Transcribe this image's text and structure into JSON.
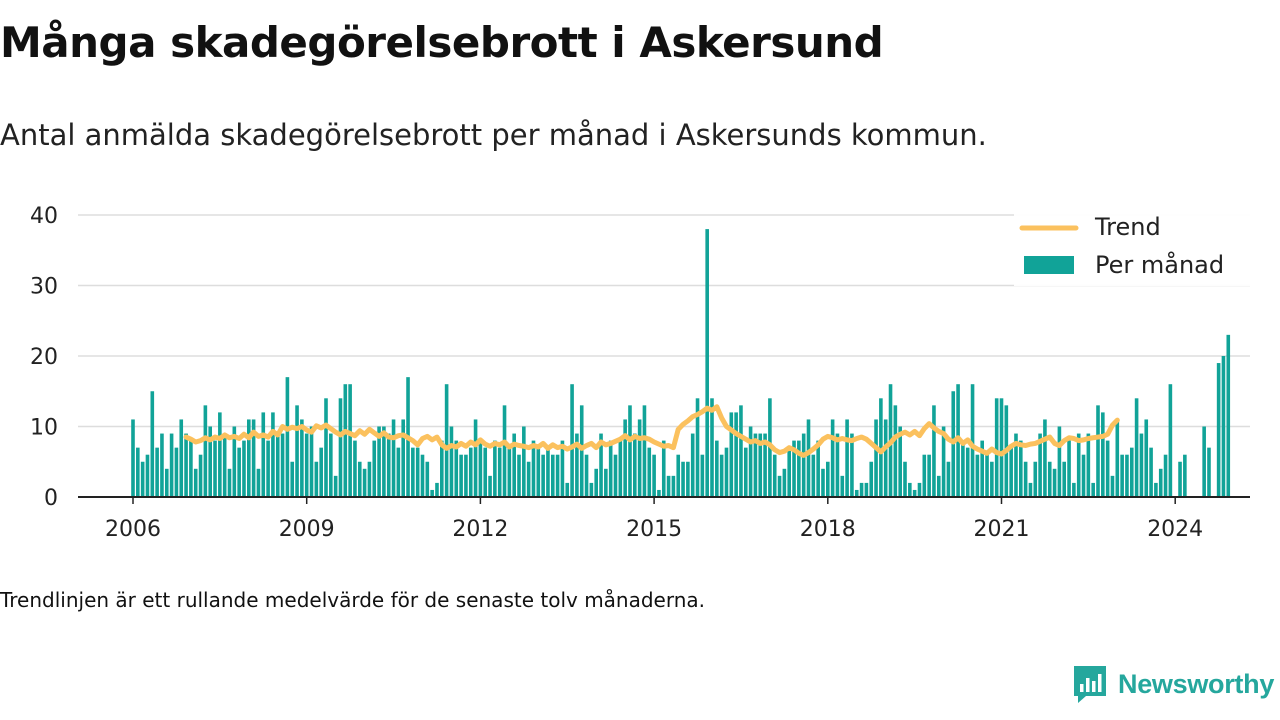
{
  "title": "Många skadegörelsebrott i Askersund",
  "subtitle": "Antal anmälda skadegörelsebrott per månad i Askersunds kommun.",
  "footnote": "Trendlinjen är ett rullande medelvärde för de senaste tolv månaderna.",
  "brand": {
    "name": "Newsworthy",
    "icon": "newsworthy-logo-icon"
  },
  "colors": {
    "bars": "#11a398",
    "trend": "#fbc15e",
    "grid": "#dddddd",
    "axis": "#222222"
  },
  "chart_data": {
    "type": "bar",
    "start": "2006-01",
    "ylim": [
      0,
      40
    ],
    "yticks": [
      0,
      10,
      20,
      30,
      40
    ],
    "xticks": [
      "2006",
      "2009",
      "2012",
      "2015",
      "2018",
      "2021",
      "2024"
    ],
    "grid": true,
    "legend_position": "top-right",
    "legend": {
      "trend": "Trend",
      "bars": "Per månad"
    },
    "series": [
      {
        "name": "Per månad",
        "type": "bar",
        "values": [
          11,
          7,
          5,
          6,
          15,
          7,
          9,
          4,
          9,
          7,
          11,
          9,
          8,
          4,
          6,
          13,
          10,
          8,
          12,
          9,
          4,
          10,
          7,
          8,
          11,
          11,
          4,
          12,
          8,
          12,
          9,
          9,
          17,
          5,
          13,
          11,
          9,
          10,
          5,
          7,
          14,
          9,
          3,
          14,
          16,
          16,
          8,
          5,
          4,
          5,
          8,
          10,
          10,
          9,
          11,
          7,
          11,
          17,
          7,
          7,
          6,
          5,
          1,
          2,
          8,
          16,
          10,
          8,
          6,
          6,
          7,
          11,
          8,
          7,
          3,
          8,
          7,
          13,
          7,
          9,
          6,
          10,
          5,
          8,
          7,
          6,
          7,
          6,
          6,
          8,
          2,
          16,
          9,
          13,
          6,
          2,
          4,
          9,
          4,
          8,
          6,
          8,
          11,
          13,
          9,
          11,
          13,
          7,
          6,
          1,
          8,
          3,
          3,
          6,
          5,
          5,
          9,
          14,
          6,
          38,
          14,
          8,
          6,
          7,
          12,
          12,
          13,
          7,
          10,
          9,
          9,
          9,
          14,
          6,
          3,
          4,
          7,
          8,
          8,
          9,
          11,
          6,
          8,
          4,
          5,
          11,
          9,
          3,
          11,
          9,
          1,
          2,
          2,
          5,
          11,
          14,
          11,
          16,
          13,
          10,
          5,
          2,
          1,
          2,
          6,
          6,
          13,
          3,
          10,
          5,
          15,
          16,
          8,
          7,
          16,
          6,
          8,
          6,
          5,
          14,
          14,
          13,
          7,
          9,
          8,
          5,
          2,
          5,
          9,
          11,
          5,
          4,
          10,
          5,
          8,
          2,
          9,
          6,
          9,
          2,
          13,
          12,
          8,
          3,
          11,
          6,
          6,
          7,
          14,
          9,
          11,
          7,
          2,
          4,
          6,
          16,
          0,
          5,
          6,
          0,
          0,
          0,
          10,
          7,
          0,
          19,
          20,
          23
        ]
      },
      {
        "name": "Trend",
        "type": "line",
        "start": "2006-12",
        "values": [
          8.5,
          8.2,
          7.8,
          8.0,
          8.4,
          8.1,
          8.5,
          8.3,
          8.8,
          8.4,
          8.6,
          8.3,
          8.9,
          8.4,
          9.2,
          8.6,
          8.8,
          8.5,
          9.3,
          8.8,
          10.0,
          9.6,
          9.9,
          9.7,
          10.0,
          9.5,
          9.2,
          10.1,
          9.8,
          10.2,
          9.7,
          9.2,
          8.8,
          9.3,
          9.0,
          8.7,
          9.4,
          8.9,
          9.6,
          9.1,
          8.6,
          9.1,
          8.5,
          8.4,
          8.7,
          8.8,
          8.4,
          8.0,
          7.4,
          8.3,
          8.6,
          8.1,
          8.5,
          7.4,
          6.9,
          7.3,
          7.1,
          7.6,
          7.2,
          7.8,
          7.4,
          8.1,
          7.5,
          7.2,
          7.6,
          7.4,
          7.8,
          7.1,
          7.5,
          7.3,
          7.2,
          7.0,
          7.3,
          7.1,
          7.6,
          6.9,
          7.4,
          7.0,
          7.2,
          6.8,
          7.1,
          7.5,
          6.9,
          7.3,
          7.6,
          7.0,
          7.8,
          7.4,
          7.6,
          7.9,
          8.2,
          8.7,
          8.1,
          8.6,
          8.3,
          8.4,
          8.2,
          7.8,
          7.5,
          7.2,
          7.3,
          7.0,
          9.6,
          10.3,
          10.8,
          11.4,
          11.7,
          12.1,
          12.6,
          12.3,
          12.8,
          11.2,
          10.0,
          9.5,
          9.0,
          8.6,
          8.2,
          7.8,
          8.0,
          7.6,
          7.8,
          7.4,
          6.7,
          6.3,
          6.5,
          7.0,
          6.7,
          6.2,
          5.9,
          6.3,
          6.8,
          7.4,
          8.2,
          8.6,
          8.4,
          8.1,
          8.3,
          8.1,
          8.0,
          8.3,
          8.5,
          8.2,
          7.6,
          7.0,
          6.4,
          7.1,
          7.7,
          8.5,
          8.9,
          9.2,
          8.8,
          9.3,
          8.7,
          9.7,
          10.4,
          9.8,
          9.3,
          9.0,
          8.2,
          7.8,
          8.4,
          7.6,
          8.1,
          7.2,
          6.8,
          6.5,
          6.2,
          6.8,
          6.3,
          6.1,
          6.6,
          7.2,
          7.6,
          7.4,
          7.3,
          7.5,
          7.6,
          7.9,
          8.2,
          8.5,
          7.6,
          7.3,
          8.0,
          8.4,
          8.3,
          8.0,
          8.1,
          8.3,
          8.4,
          8.5,
          8.6,
          8.9,
          10.2,
          10.9
        ]
      }
    ]
  }
}
